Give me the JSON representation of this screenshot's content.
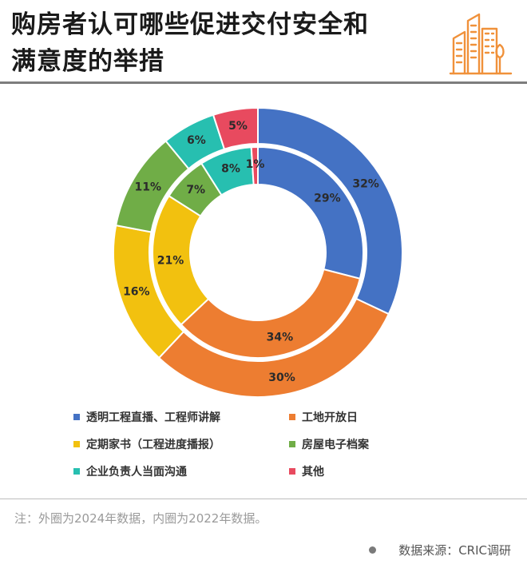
{
  "header": {
    "title_line1": "购房者认可哪些促进交付安全和",
    "title_line2": "满意度的举措",
    "logo_icon": "city-buildings-icon",
    "logo_color": "#f0913a"
  },
  "chart_data": {
    "type": "pie",
    "subtype": "nested-donut",
    "rings": [
      {
        "name": "外圈",
        "year": "2024",
        "values": [
          32,
          30,
          16,
          11,
          6,
          5
        ],
        "labels": [
          "32%",
          "30%",
          "16%",
          "11%",
          "6%",
          "5%"
        ]
      },
      {
        "name": "内圈",
        "year": "2022",
        "values": [
          29,
          34,
          21,
          7,
          8,
          1
        ],
        "labels": [
          "29%",
          "34%",
          "21%",
          "7%",
          "8%",
          "1%"
        ]
      }
    ],
    "categories": [
      "透明工程直播、工程师讲解",
      "工地开放日",
      "定期家书（工程进度播报）",
      "房屋电子档案",
      "企业负责人当面沟通",
      "其他"
    ],
    "colors": [
      "#4472c4",
      "#ed7d31",
      "#f2c10f",
      "#70ad47",
      "#27bfb0",
      "#e84a5f"
    ],
    "legend_position": "bottom"
  },
  "footer": {
    "note": "注：外圈为2024年数据，内圈为2022年数据。",
    "source": "数据来源：CRIC调研"
  }
}
